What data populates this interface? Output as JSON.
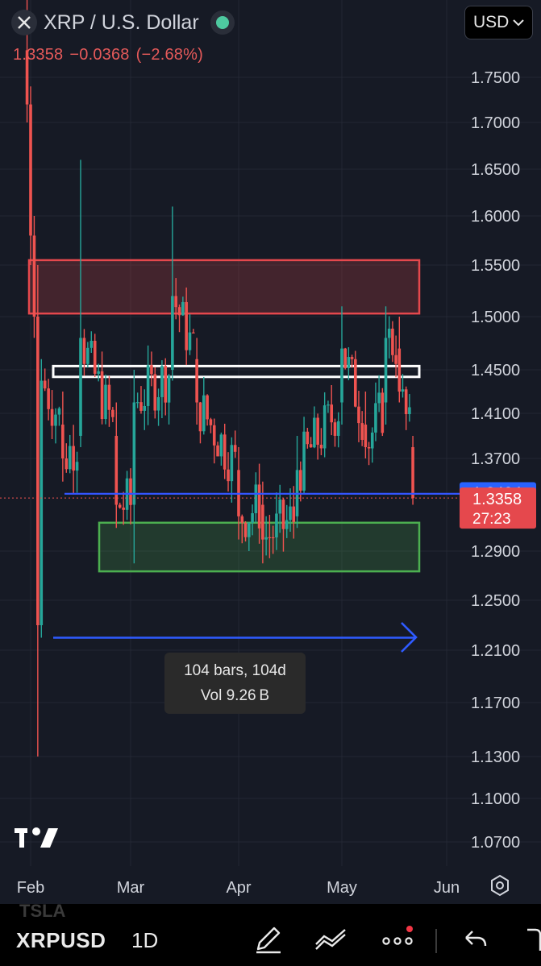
{
  "header": {
    "title": "XRP / U.S. Dollar",
    "price": "1.3358",
    "change": "−0.0368",
    "change_pct": "(−2.68%)",
    "currency": "USD"
  },
  "chart_data": {
    "type": "candlestick",
    "y_axis_labels": [
      "1.7500",
      "1.7000",
      "1.6500",
      "1.6000",
      "1.5500",
      "1.5000",
      "1.4500",
      "1.4100",
      "1.3700",
      "1.2900",
      "1.2500",
      "1.2100",
      "1.1700",
      "1.1300",
      "1.1000",
      "1.0700"
    ],
    "x_axis_labels": [
      "Feb",
      "Mar",
      "Apr",
      "May",
      "Jun"
    ],
    "grid": true,
    "last_price": {
      "value": 1.3358,
      "label": "1.3358",
      "countdown": "27:23"
    },
    "crosshair_price": {
      "value": 1.3404,
      "label": "1.3404"
    },
    "candles_approx": [
      {
        "date": "2025-01-31",
        "open": 1.78,
        "high": 1.84,
        "low": 1.7,
        "close": 1.72
      },
      {
        "date": "2025-02-01",
        "open": 1.72,
        "high": 1.74,
        "low": 1.55,
        "close": 1.58
      },
      {
        "date": "2025-02-02",
        "open": 1.58,
        "high": 1.6,
        "low": 1.48,
        "close": 1.5
      },
      {
        "date": "2025-02-03",
        "open": 1.5,
        "high": 1.55,
        "low": 1.13,
        "close": 1.23
      },
      {
        "date": "2025-02-04",
        "open": 1.23,
        "high": 1.46,
        "low": 1.22,
        "close": 1.44
      },
      {
        "date": "2025-02-10",
        "open": 1.4,
        "high": 1.43,
        "low": 1.35,
        "close": 1.37
      },
      {
        "date": "2025-02-15",
        "open": 1.39,
        "high": 1.66,
        "low": 1.38,
        "close": 1.48
      },
      {
        "date": "2025-02-25",
        "open": 1.39,
        "high": 1.42,
        "low": 1.31,
        "close": 1.33
      },
      {
        "date": "2025-03-02",
        "open": 1.33,
        "high": 1.45,
        "low": 1.28,
        "close": 1.42
      },
      {
        "date": "2025-03-13",
        "open": 1.45,
        "high": 1.61,
        "low": 1.44,
        "close": 1.52
      },
      {
        "date": "2025-03-20",
        "open": 1.46,
        "high": 1.48,
        "low": 1.4,
        "close": 1.42
      },
      {
        "date": "2025-04-01",
        "open": 1.36,
        "high": 1.38,
        "low": 1.3,
        "close": 1.32
      },
      {
        "date": "2025-04-08",
        "open": 1.33,
        "high": 1.35,
        "low": 1.28,
        "close": 1.3
      },
      {
        "date": "2025-04-18",
        "open": 1.32,
        "high": 1.39,
        "low": 1.31,
        "close": 1.36
      },
      {
        "date": "2025-05-01",
        "open": 1.42,
        "high": 1.51,
        "low": 1.4,
        "close": 1.47
      },
      {
        "date": "2025-05-08",
        "open": 1.4,
        "high": 1.43,
        "low": 1.37,
        "close": 1.38
      },
      {
        "date": "2025-05-14",
        "open": 1.42,
        "high": 1.51,
        "low": 1.4,
        "close": 1.48
      },
      {
        "date": "2025-05-18",
        "open": 1.47,
        "high": 1.5,
        "low": 1.42,
        "close": 1.43
      },
      {
        "date": "2025-05-22",
        "open": 1.38,
        "high": 1.39,
        "low": 1.33,
        "close": 1.3358
      }
    ],
    "zones": [
      {
        "name": "resistance",
        "top": 1.555,
        "bottom": 1.503,
        "color": "#e5484d"
      },
      {
        "name": "mid-level",
        "top": 1.4535,
        "bottom": 1.4435,
        "color": "#ffffff"
      },
      {
        "name": "support",
        "top": 1.3145,
        "bottom": 1.2735,
        "color": "#4caf50"
      }
    ],
    "lines": [
      {
        "name": "horizontal-level",
        "y": 1.3395,
        "color": "#3355ff"
      }
    ],
    "date_range_tool": {
      "y": 1.22,
      "bars": "104 bars, 104d",
      "vol": "Vol 9.26 B"
    }
  },
  "tooltip": {
    "line1": "104 bars, 104d",
    "line2": "Vol 9.26 B"
  },
  "toolbar": {
    "symbol": "XRPUSD",
    "interval": "1D",
    "ghost_label": "TSLA",
    "icons": [
      "pencil-icon",
      "indicators-icon",
      "more-icon",
      "undo-icon"
    ]
  },
  "colors": {
    "up": "#26a69a",
    "down": "#ef5350",
    "bg": "#161a25"
  }
}
